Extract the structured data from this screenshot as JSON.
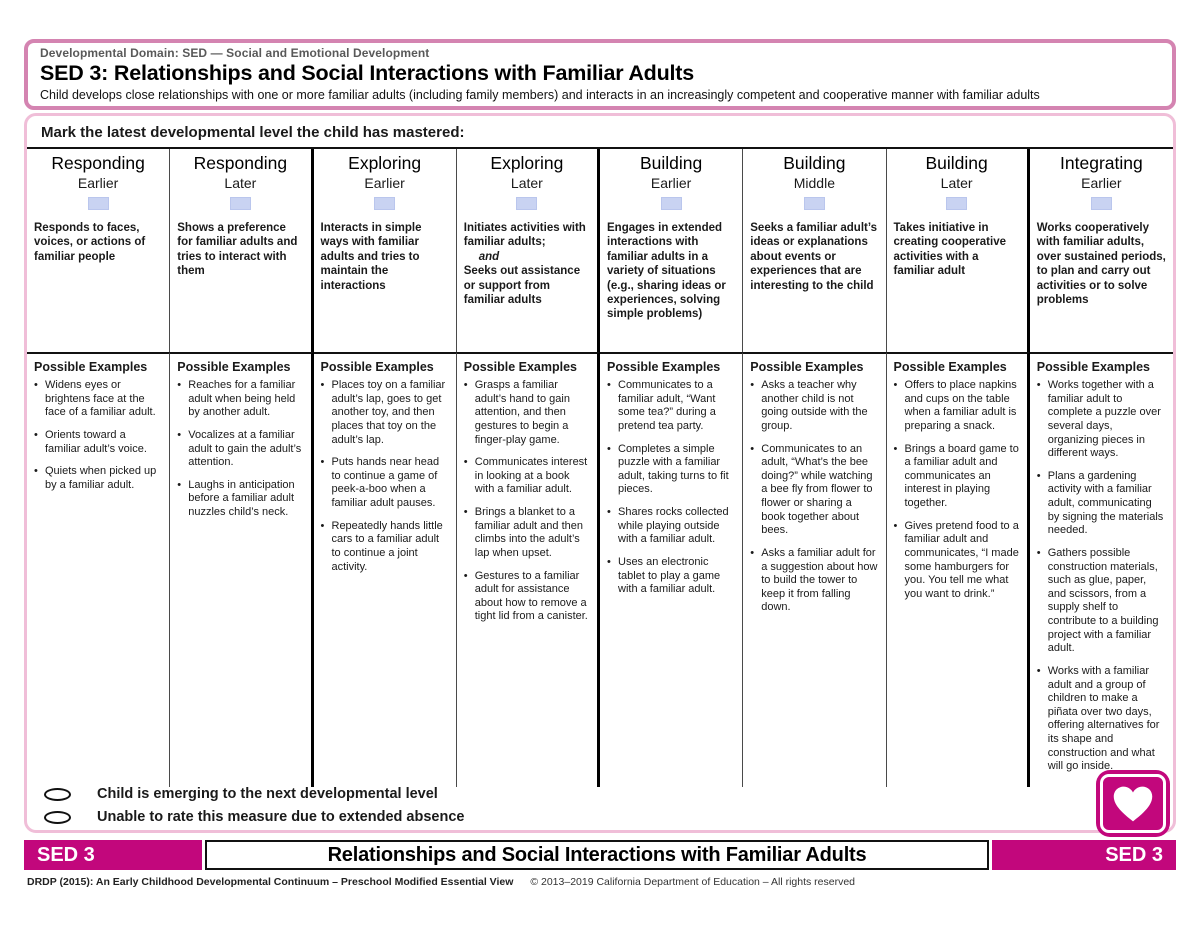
{
  "header": {
    "domain_label": "Developmental Domain: SED — Social and Emotional Development",
    "title": "SED 3: Relationships and Social Interactions with Familiar Adults",
    "description": "Child develops close relationships with one or more familiar adults (including family members) and interacts in an increasingly competent and cooperative manner with familiar adults"
  },
  "instruction": "Mark the latest developmental level the child has mastered:",
  "examples_heading": "Possible Examples",
  "columns": [
    {
      "level": "Responding",
      "sublevel": "Earlier",
      "descriptor": "Responds to faces, voices, or actions of familiar people",
      "examples": [
        "Widens eyes or brightens face at the face of a familiar adult.",
        "Orients toward a familiar adult’s voice.",
        "Quiets when picked up by a familiar adult."
      ]
    },
    {
      "level": "Responding",
      "sublevel": "Later",
      "descriptor": "Shows a preference for familiar adults and tries to interact with them",
      "examples": [
        "Reaches for a familiar adult when being held by another adult.",
        "Vocalizes at a familiar adult to gain the adult’s attention.",
        "Laughs in anticipation before a familiar adult nuzzles child’s neck."
      ]
    },
    {
      "level": "Exploring",
      "sublevel": "Earlier",
      "descriptor": "Interacts in simple ways with familiar adults and tries to maintain the interactions",
      "examples": [
        "Places toy on a familiar adult’s lap, goes to get another toy, and then places that toy on the adult’s lap.",
        "Puts hands near head to continue a game of peek-a-boo when a familiar adult pauses.",
        "Repeatedly hands little cars to a familiar adult to continue a joint activity."
      ]
    },
    {
      "level": "Exploring",
      "sublevel": "Later",
      "descriptor_parts": {
        "first": "Initiates activities with familiar adults;",
        "conjunction": "and",
        "second": "Seeks out assistance or support from familiar adults"
      },
      "examples": [
        "Grasps a familiar adult’s hand to gain attention, and then gestures to begin a finger-play game.",
        "Communicates interest in looking at a book with a familiar adult.",
        "Brings a blanket to a familiar adult and then climbs into the adult’s lap when upset.",
        "Gestures to a familiar adult for assistance about how to remove a tight lid from a canister."
      ]
    },
    {
      "level": "Building",
      "sublevel": "Earlier",
      "descriptor": "Engages in extended interactions with familiar adults in a variety of situations (e.g., sharing ideas or experiences, solving simple problems)",
      "examples": [
        "Communicates to a familiar adult, “Want some tea?” during a pretend tea party.",
        "Completes a simple puzzle with a familiar adult, taking turns to fit pieces.",
        "Shares rocks collected while playing outside with a familiar adult.",
        "Uses an electronic tablet to play a game with a familiar adult."
      ]
    },
    {
      "level": "Building",
      "sublevel": "Middle",
      "descriptor": "Seeks a familiar adult’s ideas or explanations about events or experiences that are interesting to the child",
      "examples": [
        "Asks a teacher why another child is not going outside with the group.",
        "Communicates to an adult, “What’s the bee doing?” while watching a bee fly from flower to flower or sharing a book together about bees.",
        "Asks a familiar adult for a suggestion about how to build the tower to keep it from falling down."
      ]
    },
    {
      "level": "Building",
      "sublevel": "Later",
      "descriptor": "Takes initiative in creating cooperative activities with a familiar adult",
      "examples": [
        "Offers to place napkins and cups on the table when a familiar adult is preparing a snack.",
        "Brings a board game to a familiar adult and communicates an interest in playing together.",
        "Gives pretend food to a familiar adult and communicates, “I made some hamburgers for you. You tell me what you want to drink.”"
      ]
    },
    {
      "level": "Integrating",
      "sublevel": "Earlier",
      "descriptor": "Works cooperatively with familiar adults, over sustained periods, to plan and carry out activities or to solve problems",
      "examples": [
        "Works together with a familiar adult to complete a puzzle over several days, organizing pieces in different ways.",
        "Plans a gardening activity with a familiar adult, communicating by signing the materials needed.",
        "Gathers possible construction materials, such as glue, paper, and scissors, from a supply shelf to contribute to a building project with a familiar adult.",
        "Works with a familiar adult and a group of children to make a piñata over two days, offering alternatives for its shape and construction and what will go inside."
      ]
    }
  ],
  "footer_options": [
    "Child is emerging to the next developmental level",
    "Unable to rate this measure due to extended absence"
  ],
  "band": {
    "left_code": "SED 3",
    "center_title": "Relationships and Social Interactions with Familiar Adults",
    "right_code": "SED 3"
  },
  "copyright": {
    "continuum": "DRDP (2015): An Early Childhood Developmental Continuum –",
    "view": "Preschool Modified Essential View",
    "rights": "© 2013–2019  California Department of Education – All rights reserved"
  },
  "colors": {
    "accent_magenta": "#c2077c",
    "header_border_pink": "#d484b1",
    "panel_border_pink": "#f0bed8",
    "checkbox_blue": "#c9d3f2"
  }
}
